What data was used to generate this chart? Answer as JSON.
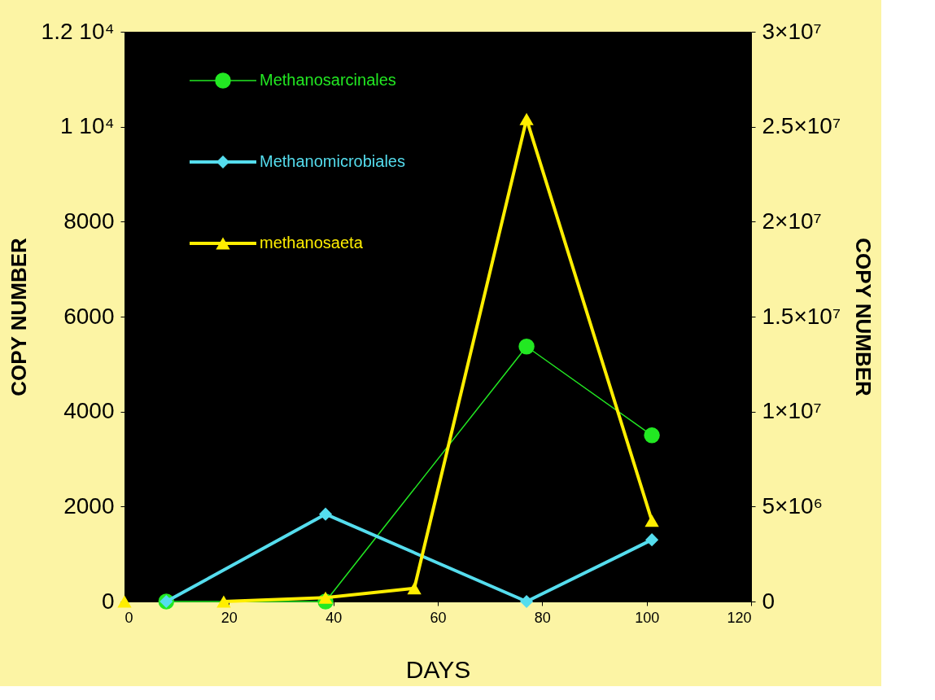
{
  "chart_data": {
    "type": "line",
    "xlabel": "DAYS",
    "ylabel": "COPY NUMBER",
    "y2label": "COPY NUMBER",
    "xlim": [
      0,
      120
    ],
    "xticks": [
      0,
      20,
      40,
      60,
      80,
      100,
      120
    ],
    "ylim": [
      0,
      12000
    ],
    "yticks": [
      0,
      2000,
      4000,
      6000,
      8000,
      {
        "value": 10000,
        "label": "1 10⁴"
      },
      {
        "value": 12000,
        "label": "1.2 10⁴"
      }
    ],
    "y2lim": [
      0,
      30000000
    ],
    "y2ticks": [
      0,
      {
        "value": 5000000,
        "label": "5×10⁶"
      },
      {
        "value": 10000000,
        "label": "1×10⁷"
      },
      {
        "value": 15000000,
        "label": "1.5×10⁷"
      },
      {
        "value": 20000000,
        "label": "2×10⁷"
      },
      {
        "value": 25000000,
        "label": "2.5×10⁷"
      },
      {
        "value": 30000000,
        "label": "3×10⁷"
      }
    ],
    "grid": false,
    "legend": "top left",
    "line_style": "solid",
    "series": [
      {
        "name": "Methanosarcinales",
        "color": "#22e822",
        "marker": "circle",
        "x": [
          8,
          38.5,
          77,
          101
        ],
        "values": [
          0,
          0,
          5370,
          3500
        ]
      },
      {
        "name": "Methanomicrobiales",
        "color": "#55ddee",
        "marker": "diamond",
        "x": [
          8,
          38.5,
          77,
          101
        ],
        "values": [
          0,
          1840,
          0,
          1300
        ]
      },
      {
        "name": "methanosaeta",
        "color": "#ffee00",
        "marker": "triangle",
        "axis": "y2",
        "x": [
          0,
          10,
          19,
          38.5,
          55.5,
          77,
          101
        ],
        "values": [
          0,
          null,
          0,
          200000,
          700000,
          25400000,
          4250000
        ]
      }
    ]
  }
}
